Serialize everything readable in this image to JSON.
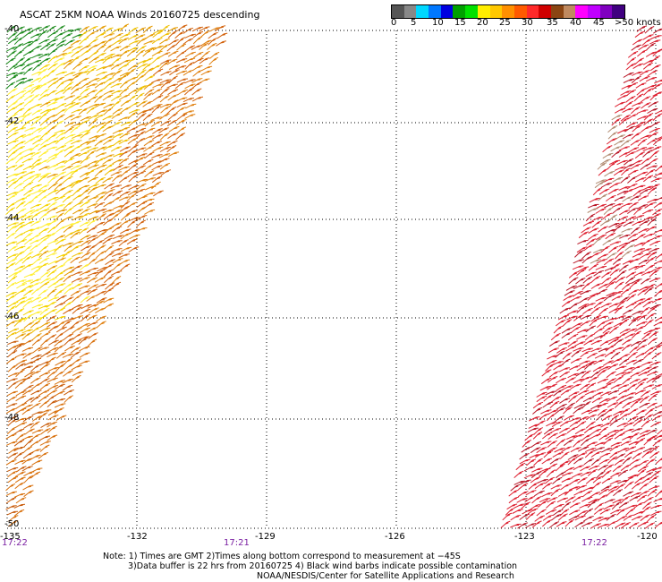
{
  "title": "ASCAT 25KM NOAA Winds 20160725 descending",
  "colorbar": {
    "colors": [
      "#555555",
      "#888888",
      "#00d8ff",
      "#0078ff",
      "#0000e0",
      "#00a000",
      "#00e000",
      "#ffee00",
      "#ffc800",
      "#ff9000",
      "#ff5a00",
      "#ff2a2a",
      "#d00000",
      "#8b4513",
      "#c08a60",
      "#ff00ff",
      "#c000ff",
      "#8000c0",
      "#400080"
    ],
    "labels": [
      "0",
      "5",
      "10",
      "15",
      "20",
      "25",
      "30",
      "35",
      "40",
      "45",
      ">50 knots"
    ]
  },
  "map": {
    "lat_labels": [
      "-40",
      "-42",
      "-44",
      "-46",
      "-48",
      "-50"
    ],
    "lon_labels": [
      "-135",
      "-132",
      "-129",
      "-126",
      "-123",
      "-120"
    ],
    "time_labels": [
      "17:22",
      "17:21",
      "17:22"
    ]
  },
  "notes": [
    "Note: 1) Times are GMT 2)Times along bottom correspond to measurement at −45S",
    "3)Data buffer is 22 hrs from 20160725 4) Black wind barbs indicate possible contamination",
    "NOAA/NESDIS/Center for Satellite Applications and Research"
  ]
}
